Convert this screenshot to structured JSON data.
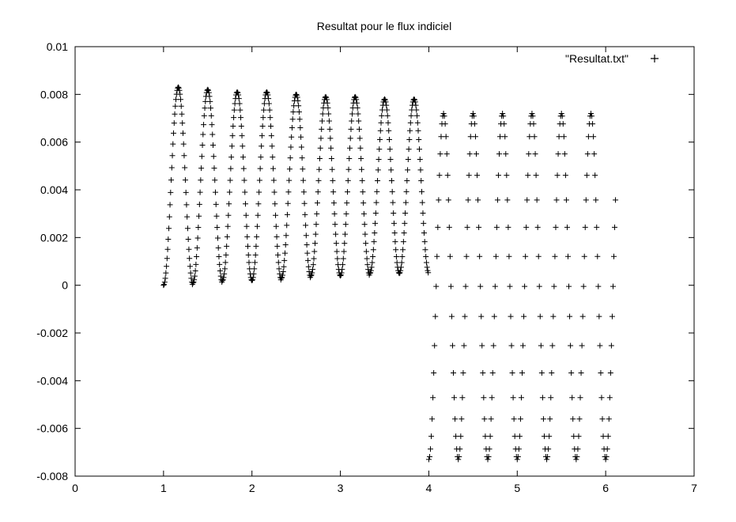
{
  "chart_data": {
    "type": "scatter",
    "title": "Resultat pour le flux indiciel",
    "xlabel": "",
    "ylabel": "",
    "xlim": [
      0,
      7
    ],
    "ylim": [
      -0.008,
      0.01
    ],
    "x_ticks": [
      "0",
      "1",
      "2",
      "3",
      "4",
      "5",
      "6",
      "7"
    ],
    "y_ticks": [
      "-0.008",
      "-0.006",
      "-0.004",
      "-0.002",
      "0",
      "0.002",
      "0.004",
      "0.006",
      "0.008",
      "0.01"
    ],
    "grid": false,
    "legend_position": "top-right",
    "marker": "+",
    "series": [
      {
        "name": "\"Resultat.txt\"",
        "color": "#000000",
        "description_of_points": "sampled sinusoidal response: period ~0.35, from x=1 to x=6",
        "segments": [
          {
            "x_start": 1.0,
            "x_end": 4.0,
            "samples_per_period": 50,
            "peaks": [
              0.0083,
              0.0082,
              0.0081,
              0.0081,
              0.008,
              0.0079,
              0.0079,
              0.0078,
              0.0078
            ],
            "troughs": [
              0.0,
              0.0001,
              0.0002,
              0.0002,
              0.0003,
              0.0004,
              0.0004,
              0.0005,
              0.0005
            ]
          },
          {
            "x_start": 4.0,
            "x_end": 6.0,
            "samples_per_period": 36,
            "peaks": [
              0.0072,
              0.0072,
              0.0072,
              0.0072,
              0.0072,
              0.0072
            ],
            "troughs": [
              -0.0073,
              -0.0073,
              -0.0073,
              -0.0073,
              -0.0073,
              -0.0073
            ]
          }
        ]
      }
    ]
  }
}
